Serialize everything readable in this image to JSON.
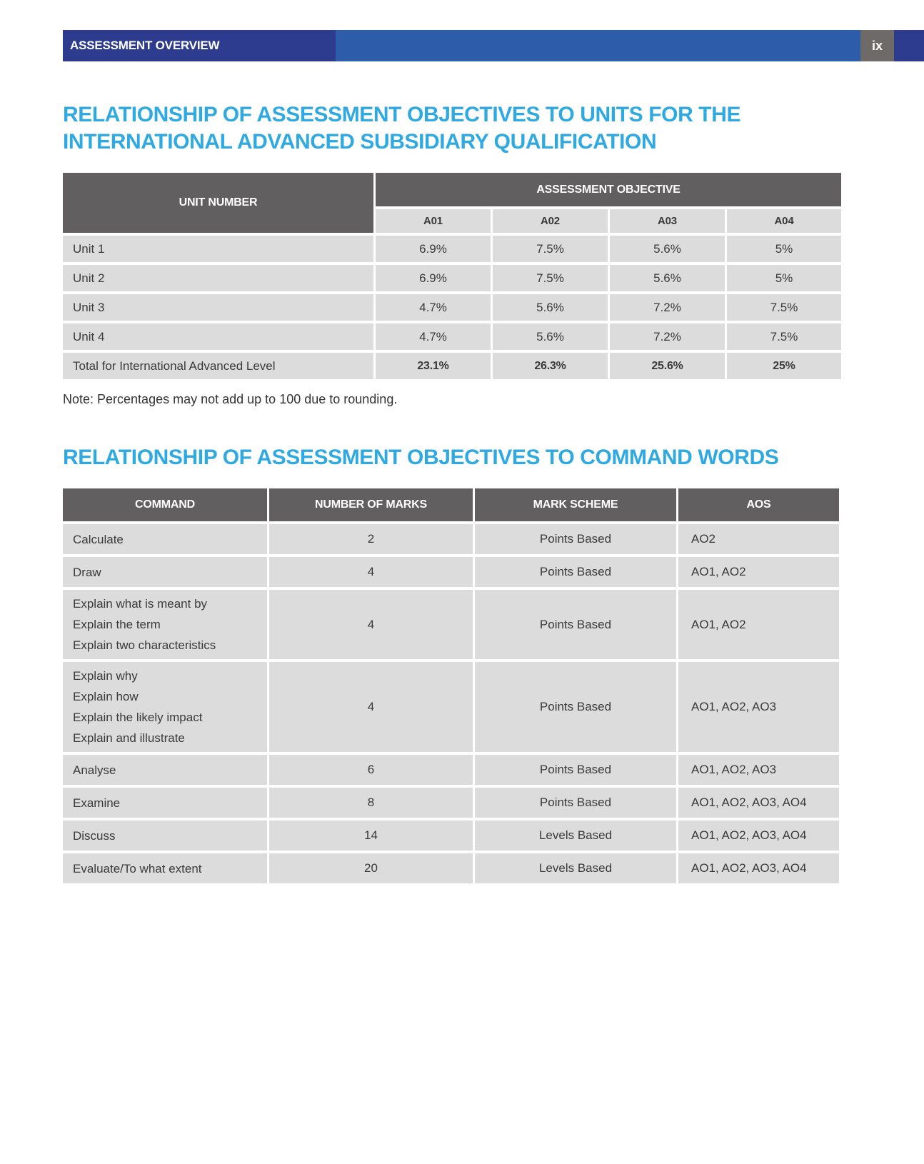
{
  "header": {
    "title": "ASSESSMENT OVERVIEW",
    "page_label": "ix"
  },
  "colors": {
    "accent_blue": "#2fa9e1",
    "navy_blue": "#2d3c8f",
    "medium_blue": "#2d5cab",
    "badge_gray": "#6e6a67",
    "table_header_gray": "#615f5f",
    "cell_gray": "#dddcdc"
  },
  "section1": {
    "heading_line1": "RELATIONSHIP OF ASSESSMENT OBJECTIVES TO UNITS FOR THE",
    "heading_line2": "INTERNATIONAL ADVANCED SUBSIDIARY QUALIFICATION",
    "table": {
      "unit_column_header": "UNIT NUMBER",
      "group_header": "ASSESSMENT OBJECTIVE",
      "objective_columns": [
        "A01",
        "A02",
        "A03",
        "A04"
      ],
      "rows": [
        {
          "label": "Unit 1",
          "values": [
            "6.9%",
            "7.5%",
            "5.6%",
            "5%"
          ]
        },
        {
          "label": "Unit 2",
          "values": [
            "6.9%",
            "7.5%",
            "5.6%",
            "5%"
          ]
        },
        {
          "label": "Unit 3",
          "values": [
            "4.7%",
            "5.6%",
            "7.2%",
            "7.5%"
          ]
        },
        {
          "label": "Unit 4",
          "values": [
            "4.7%",
            "5.6%",
            "7.2%",
            "7.5%"
          ]
        }
      ],
      "total_row": {
        "label": "Total for International Advanced Level",
        "values": [
          "23.1%",
          "26.3%",
          "25.6%",
          "25%"
        ]
      }
    },
    "note": "Note: Percentages may not add up to 100 due to rounding."
  },
  "section2": {
    "heading": "RELATIONSHIP OF ASSESSMENT OBJECTIVES TO COMMAND WORDS",
    "table": {
      "columns": [
        "COMMAND",
        "NUMBER OF MARKS",
        "MARK SCHEME",
        "AOS"
      ],
      "rows": [
        {
          "command": [
            "Calculate"
          ],
          "marks": "2",
          "scheme": "Points Based",
          "aos": "AO2"
        },
        {
          "command": [
            "Draw"
          ],
          "marks": "4",
          "scheme": "Points Based",
          "aos": "AO1, AO2"
        },
        {
          "command": [
            "Explain what is meant by",
            "Explain the term",
            "Explain two characteristics"
          ],
          "marks": "4",
          "scheme": "Points Based",
          "aos": "AO1, AO2"
        },
        {
          "command": [
            "Explain why",
            "Explain how",
            "Explain the likely impact",
            "Explain and illustrate"
          ],
          "marks": "4",
          "scheme": "Points Based",
          "aos": "AO1, AO2, AO3"
        },
        {
          "command": [
            "Analyse"
          ],
          "marks": "6",
          "scheme": "Points Based",
          "aos": "AO1, AO2, AO3"
        },
        {
          "command": [
            "Examine"
          ],
          "marks": "8",
          "scheme": "Points Based",
          "aos": "AO1, AO2, AO3, AO4"
        },
        {
          "command": [
            "Discuss"
          ],
          "marks": "14",
          "scheme": "Levels Based",
          "aos": "AO1, AO2, AO3, AO4"
        },
        {
          "command": [
            "Evaluate/To what extent"
          ],
          "marks": "20",
          "scheme": "Levels Based",
          "aos": "AO1, AO2, AO3, AO4"
        }
      ]
    }
  }
}
